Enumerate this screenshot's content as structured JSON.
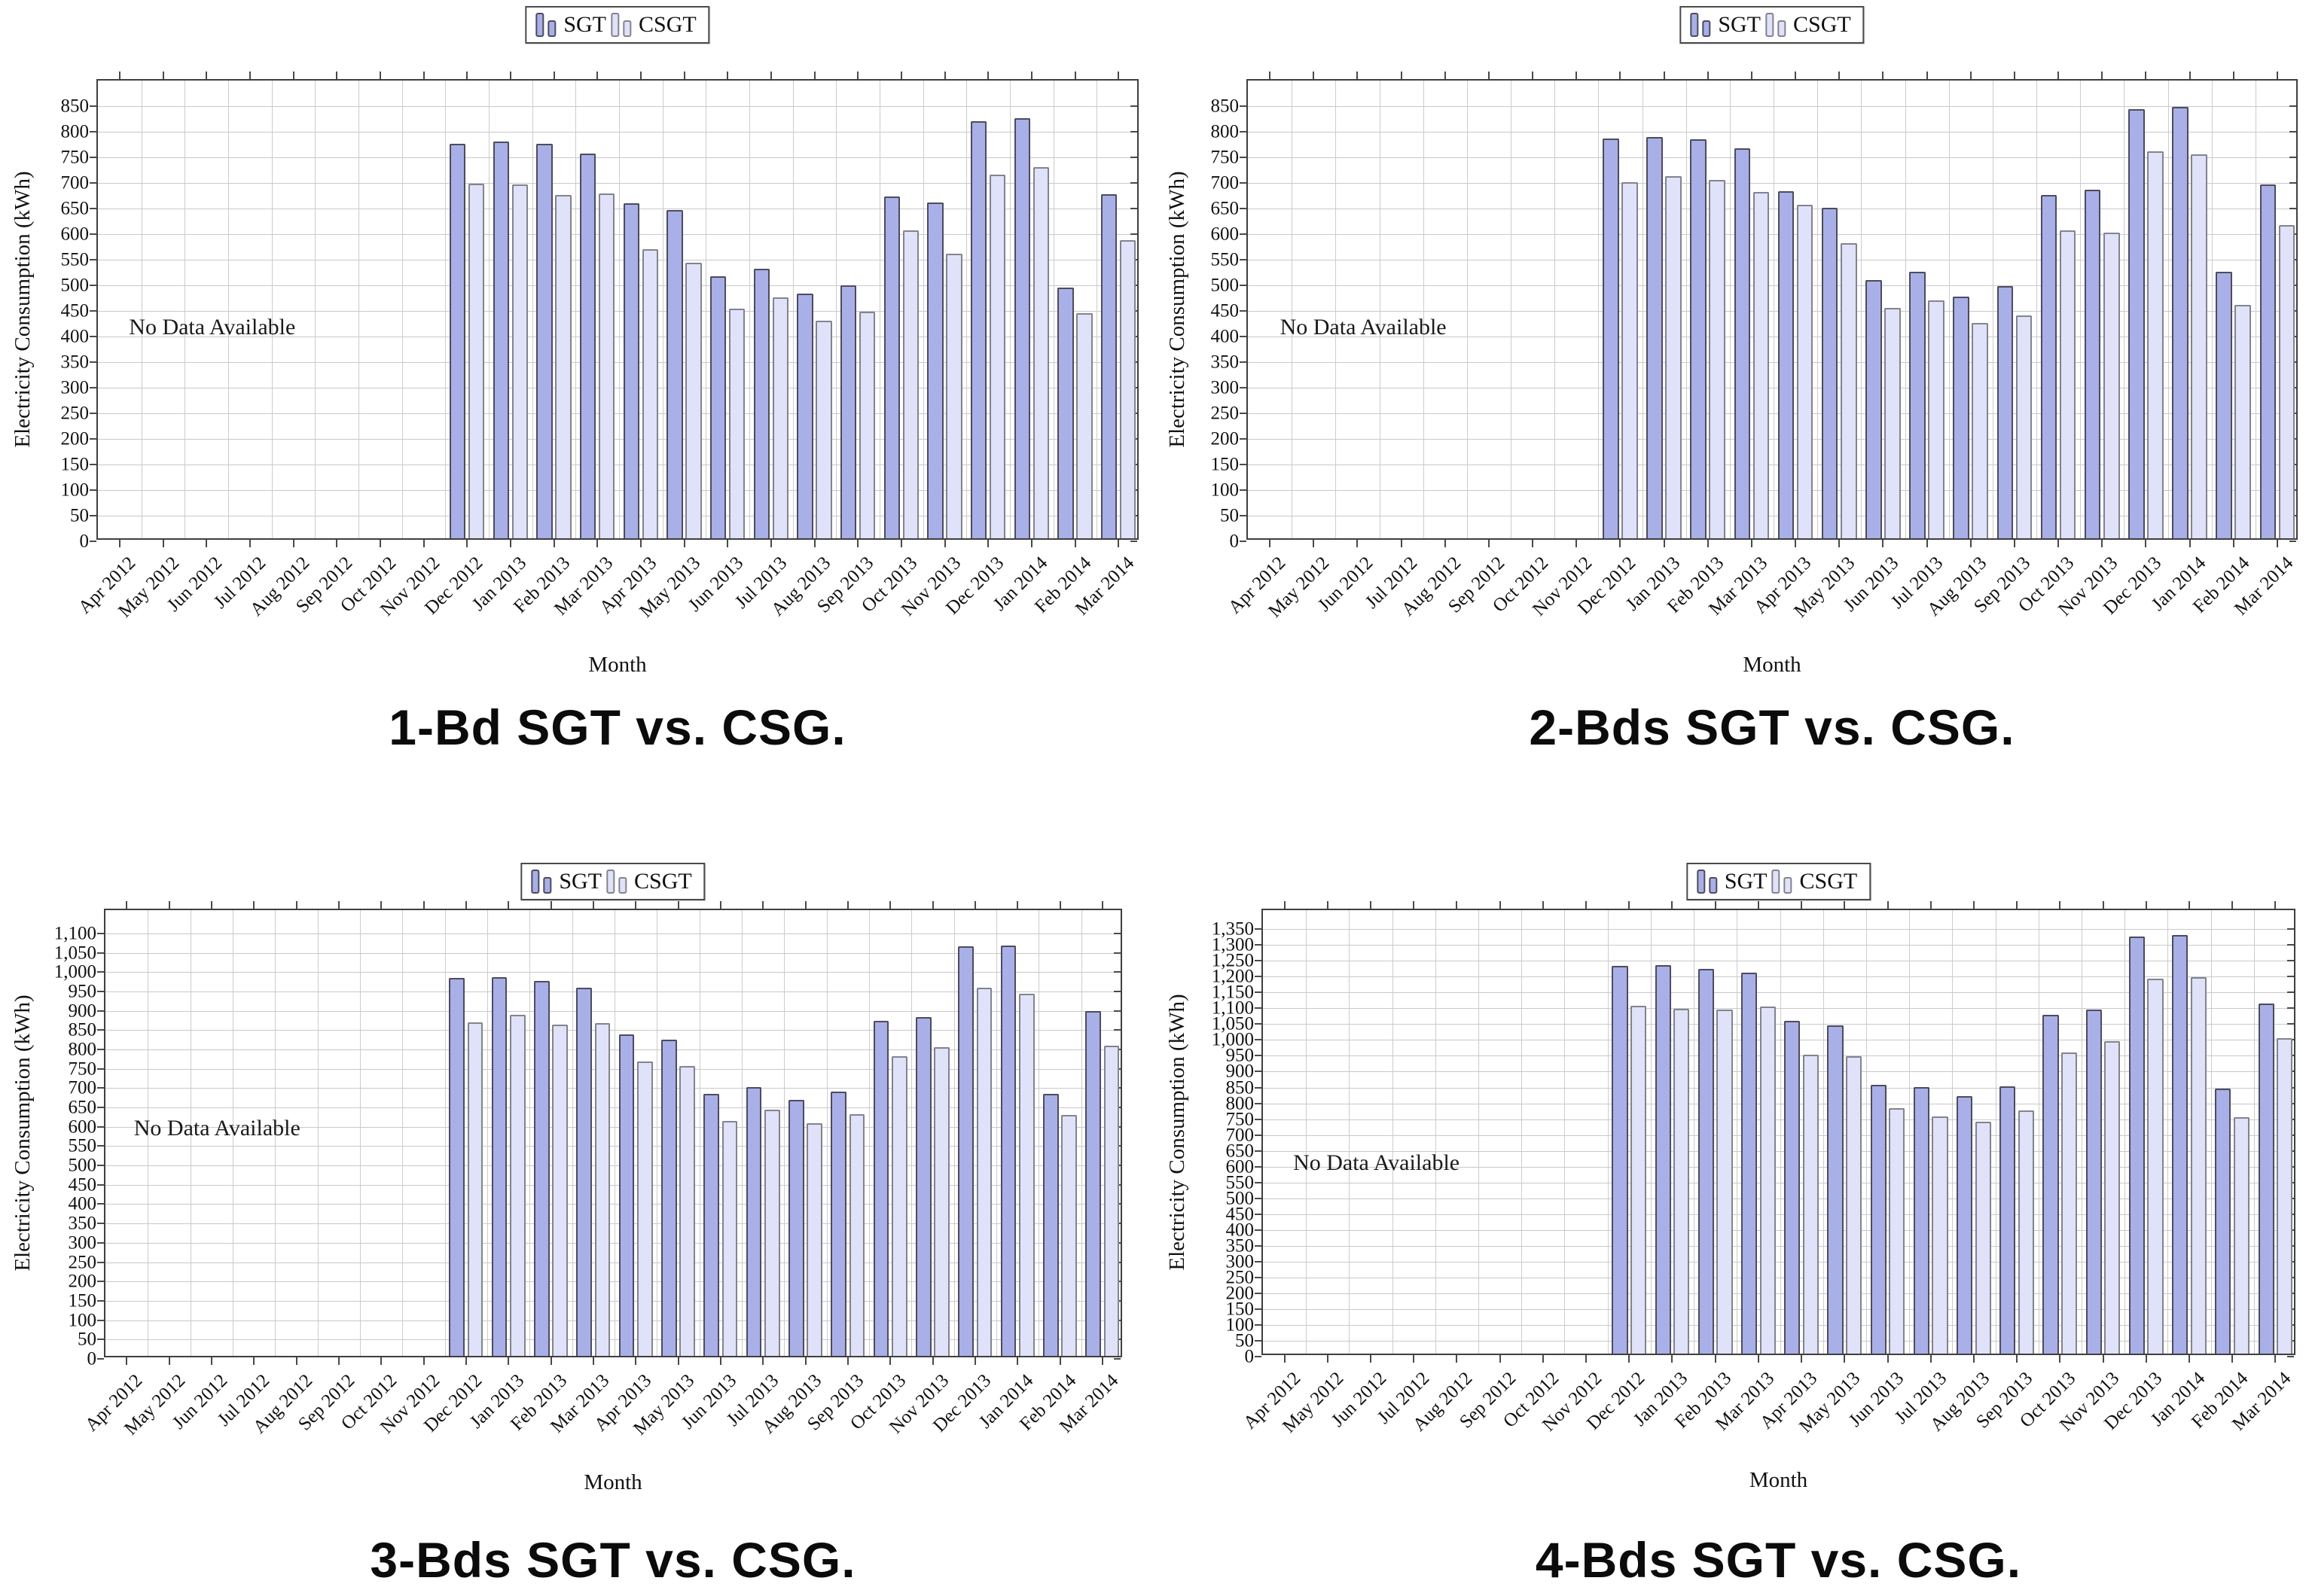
{
  "legend": {
    "sgt_label": "SGT",
    "csgt_label": "CSGT"
  },
  "colors": {
    "sgt_fill": "#a9afe7",
    "sgt_border": "#4c4c5e",
    "csgt_fill": "#dfe2f8",
    "csgt_border": "#83838f",
    "grid": "#c9c9c9",
    "plot_border": "#3f3f3f",
    "text": "#111111"
  },
  "chart_data": [
    {
      "type": "bar",
      "title": "1-Bd SGT vs. CSG.",
      "xlabel": "Month",
      "ylabel": "Electricity Consumption (kWh)",
      "annotation": "No Data Available",
      "legend_position": "top-center",
      "grid": true,
      "ylim": [
        0,
        900
      ],
      "ytick_step": 50,
      "ytick_max": 850,
      "categories": [
        "Apr 2012",
        "May 2012",
        "Jun 2012",
        "Jul 2012",
        "Aug 2012",
        "Sep 2012",
        "Oct 2012",
        "Nov 2012",
        "Dec 2012",
        "Jan 2013",
        "Feb 2013",
        "Mar 2013",
        "Apr 2013",
        "May 2013",
        "Jun 2013",
        "Jul 2013",
        "Aug 2013",
        "Sep 2013",
        "Oct 2013",
        "Nov 2013",
        "Dec 2013",
        "Jan 2014",
        "Feb 2014",
        "Mar 2014"
      ],
      "series": [
        {
          "name": "SGT",
          "values": [
            null,
            null,
            null,
            null,
            null,
            null,
            null,
            null,
            770,
            775,
            770,
            752,
            654,
            641,
            512,
            526,
            478,
            494,
            667,
            656,
            815,
            821,
            490,
            672
          ]
        },
        {
          "name": "CSGT",
          "values": [
            null,
            null,
            null,
            null,
            null,
            null,
            null,
            null,
            693,
            691,
            670,
            673,
            565,
            538,
            449,
            470,
            425,
            443,
            601,
            556,
            710,
            725,
            440,
            582
          ]
        }
      ]
    },
    {
      "type": "bar",
      "title": "2-Bds SGT vs. CSG.",
      "xlabel": "Month",
      "ylabel": "Electricity Consumption (kWh)",
      "annotation": "No Data Available",
      "legend_position": "top-center",
      "grid": true,
      "ylim": [
        0,
        900
      ],
      "ytick_step": 50,
      "ytick_max": 850,
      "categories": [
        "Apr 2012",
        "May 2012",
        "Jun 2012",
        "Jul 2012",
        "Aug 2012",
        "Sep 2012",
        "Oct 2012",
        "Nov 2012",
        "Dec 2012",
        "Jan 2013",
        "Feb 2013",
        "Mar 2013",
        "Apr 2013",
        "May 2013",
        "Jun 2013",
        "Jul 2013",
        "Aug 2013",
        "Sep 2013",
        "Oct 2013",
        "Nov 2013",
        "Dec 2013",
        "Jan 2014",
        "Feb 2014",
        "Mar 2014"
      ],
      "series": [
        {
          "name": "SGT",
          "values": [
            null,
            null,
            null,
            null,
            null,
            null,
            null,
            null,
            781,
            784,
            780,
            762,
            678,
            645,
            505,
            520,
            472,
            492,
            670,
            681,
            838,
            842,
            520,
            691
          ]
        },
        {
          "name": "CSGT",
          "values": [
            null,
            null,
            null,
            null,
            null,
            null,
            null,
            null,
            696,
            707,
            700,
            677,
            652,
            576,
            450,
            465,
            420,
            435,
            601,
            597,
            756,
            750,
            456,
            612
          ]
        }
      ]
    },
    {
      "type": "bar",
      "title": "3-Bds SGT vs. CSG.",
      "xlabel": "Month",
      "ylabel": "Electricity Consumption (kWh)",
      "annotation": "No Data Available",
      "legend_position": "top-center",
      "grid": true,
      "ylim": [
        0,
        1160
      ],
      "ytick_step": 50,
      "ytick_max": 1100,
      "categories": [
        "Apr 2012",
        "May 2012",
        "Jun 2012",
        "Jul 2012",
        "Aug 2012",
        "Sep 2012",
        "Oct 2012",
        "Nov 2012",
        "Dec 2012",
        "Jan 2013",
        "Feb 2013",
        "Mar 2013",
        "Apr 2013",
        "May 2013",
        "Jun 2013",
        "Jul 2013",
        "Aug 2013",
        "Sep 2013",
        "Oct 2013",
        "Nov 2013",
        "Dec 2013",
        "Jan 2014",
        "Feb 2014",
        "Mar 2014"
      ],
      "series": [
        {
          "name": "SGT",
          "values": [
            null,
            null,
            null,
            null,
            null,
            null,
            null,
            null,
            977,
            979,
            970,
            951,
            832,
            818,
            677,
            694,
            661,
            683,
            866,
            875,
            1058,
            1060,
            677,
            891
          ]
        },
        {
          "name": "CSGT",
          "values": [
            null,
            null,
            null,
            null,
            null,
            null,
            null,
            null,
            862,
            882,
            857,
            860,
            762,
            749,
            608,
            637,
            601,
            624,
            774,
            798,
            951,
            936,
            622,
            802
          ]
        }
      ]
    },
    {
      "type": "bar",
      "title": "4-Bds SGT vs. CSG.",
      "xlabel": "Month",
      "ylabel": "Electricity Consumption (kWh)",
      "annotation": "No Data Available",
      "legend_position": "top-center",
      "grid": true,
      "ylim": [
        0,
        1410
      ],
      "ytick_step": 50,
      "ytick_max": 1350,
      "categories": [
        "Apr 2012",
        "May 2012",
        "Jun 2012",
        "Jul 2012",
        "Aug 2012",
        "Sep 2012",
        "Oct 2012",
        "Nov 2012",
        "Dec 2012",
        "Jan 2013",
        "Feb 2013",
        "Mar 2013",
        "Apr 2013",
        "May 2013",
        "Jun 2013",
        "Jul 2013",
        "Aug 2013",
        "Sep 2013",
        "Oct 2013",
        "Nov 2013",
        "Dec 2013",
        "Jan 2014",
        "Feb 2014",
        "Mar 2014"
      ],
      "series": [
        {
          "name": "SGT",
          "values": [
            null,
            null,
            null,
            null,
            null,
            null,
            null,
            null,
            1225,
            1227,
            1216,
            1204,
            1050,
            1036,
            848,
            841,
            814,
            843,
            1071,
            1086,
            1317,
            1321,
            836,
            1105
          ]
        },
        {
          "name": "CSGT",
          "values": [
            null,
            null,
            null,
            null,
            null,
            null,
            null,
            null,
            1098,
            1088,
            1086,
            1095,
            945,
            940,
            774,
            750,
            733,
            767,
            952,
            986,
            1183,
            1188,
            746,
            996
          ]
        }
      ]
    }
  ]
}
